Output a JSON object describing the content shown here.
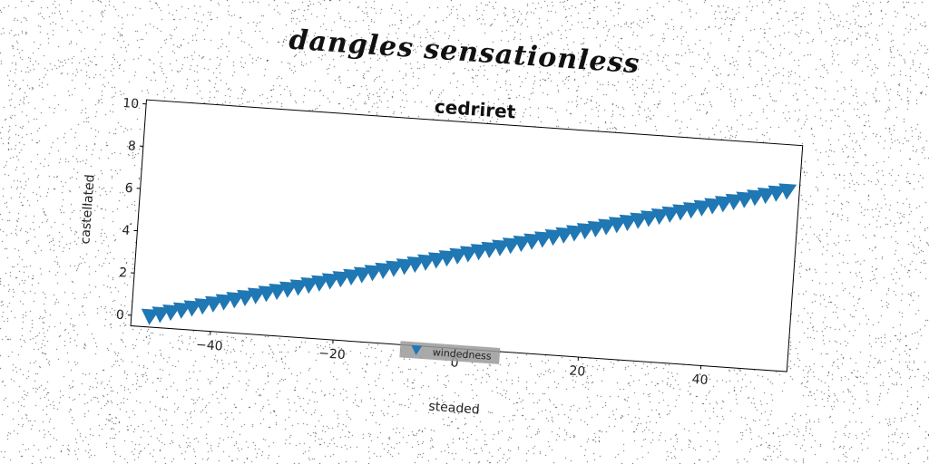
{
  "suptitle": "dangles sensationless",
  "chart_data": {
    "type": "scatter",
    "title": "cedriret",
    "xlabel": "steaded",
    "ylabel": "castellated",
    "xlim": [
      -53,
      54
    ],
    "ylim": [
      -0.5,
      10.2
    ],
    "xticks": [
      -40,
      -20,
      0,
      20,
      40
    ],
    "yticks": [
      0,
      2,
      4,
      6,
      8,
      10
    ],
    "legend_position": "bottom-center",
    "marker": "triangle-down",
    "colors": {
      "series": "#1f77b4",
      "legend_bg": "#9a9a9a"
    },
    "series": [
      {
        "name": "windedness",
        "x_start": -50,
        "x_end": 52,
        "y_start": 0,
        "y_end": 8,
        "point_count": 61
      }
    ]
  }
}
